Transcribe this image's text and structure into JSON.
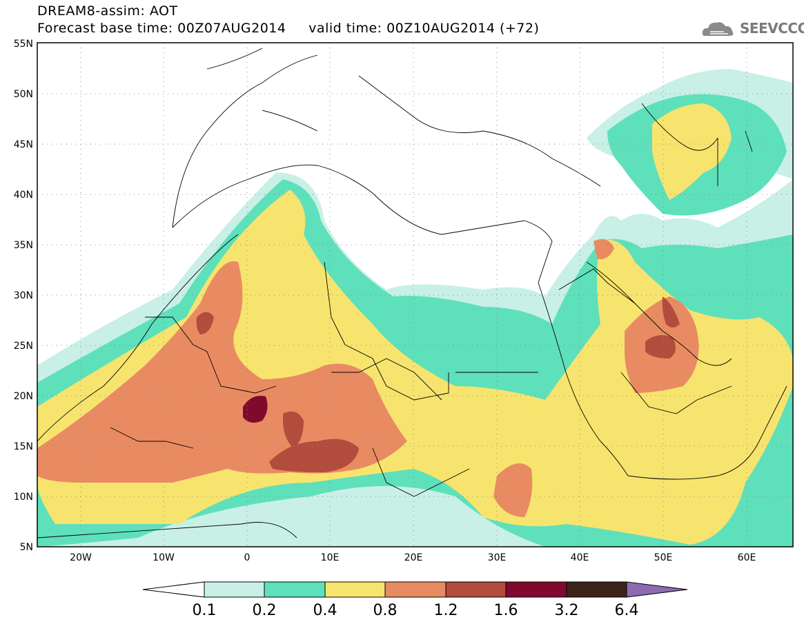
{
  "header": {
    "line1": "DREAM8-assim: AOT",
    "line2": "Forecast base time: 00Z07AUG2014     valid time: 00Z10AUG2014 (+72)"
  },
  "logo": {
    "text": "SEEVCCC"
  },
  "map": {
    "lat_labels": [
      "55N",
      "50N",
      "45N",
      "40N",
      "35N",
      "30N",
      "25N",
      "20N",
      "15N",
      "10N",
      "5N"
    ],
    "lon_labels": [
      "20W",
      "10W",
      "0",
      "10E",
      "20E",
      "30E",
      "40E",
      "50E",
      "60E"
    ],
    "grid": true
  },
  "colorbar": {
    "labels": [
      "0.1",
      "0.2",
      "0.4",
      "0.8",
      "1.2",
      "1.6",
      "3.2",
      "6.4"
    ],
    "colors": [
      "#ffffff",
      "#c8f0e6",
      "#5ee0bb",
      "#f7e46e",
      "#e98b62",
      "#b24c3c",
      "#7f0a2e",
      "#3d2419",
      "#8c6bb0"
    ]
  },
  "colors": {
    "level_0.1": "#c8f0e6",
    "level_0.2": "#5ee0bb",
    "level_0.4": "#f7e46e",
    "level_0.8": "#e98b62",
    "level_1.2": "#b24c3c",
    "level_1.6": "#7f0a2e"
  }
}
